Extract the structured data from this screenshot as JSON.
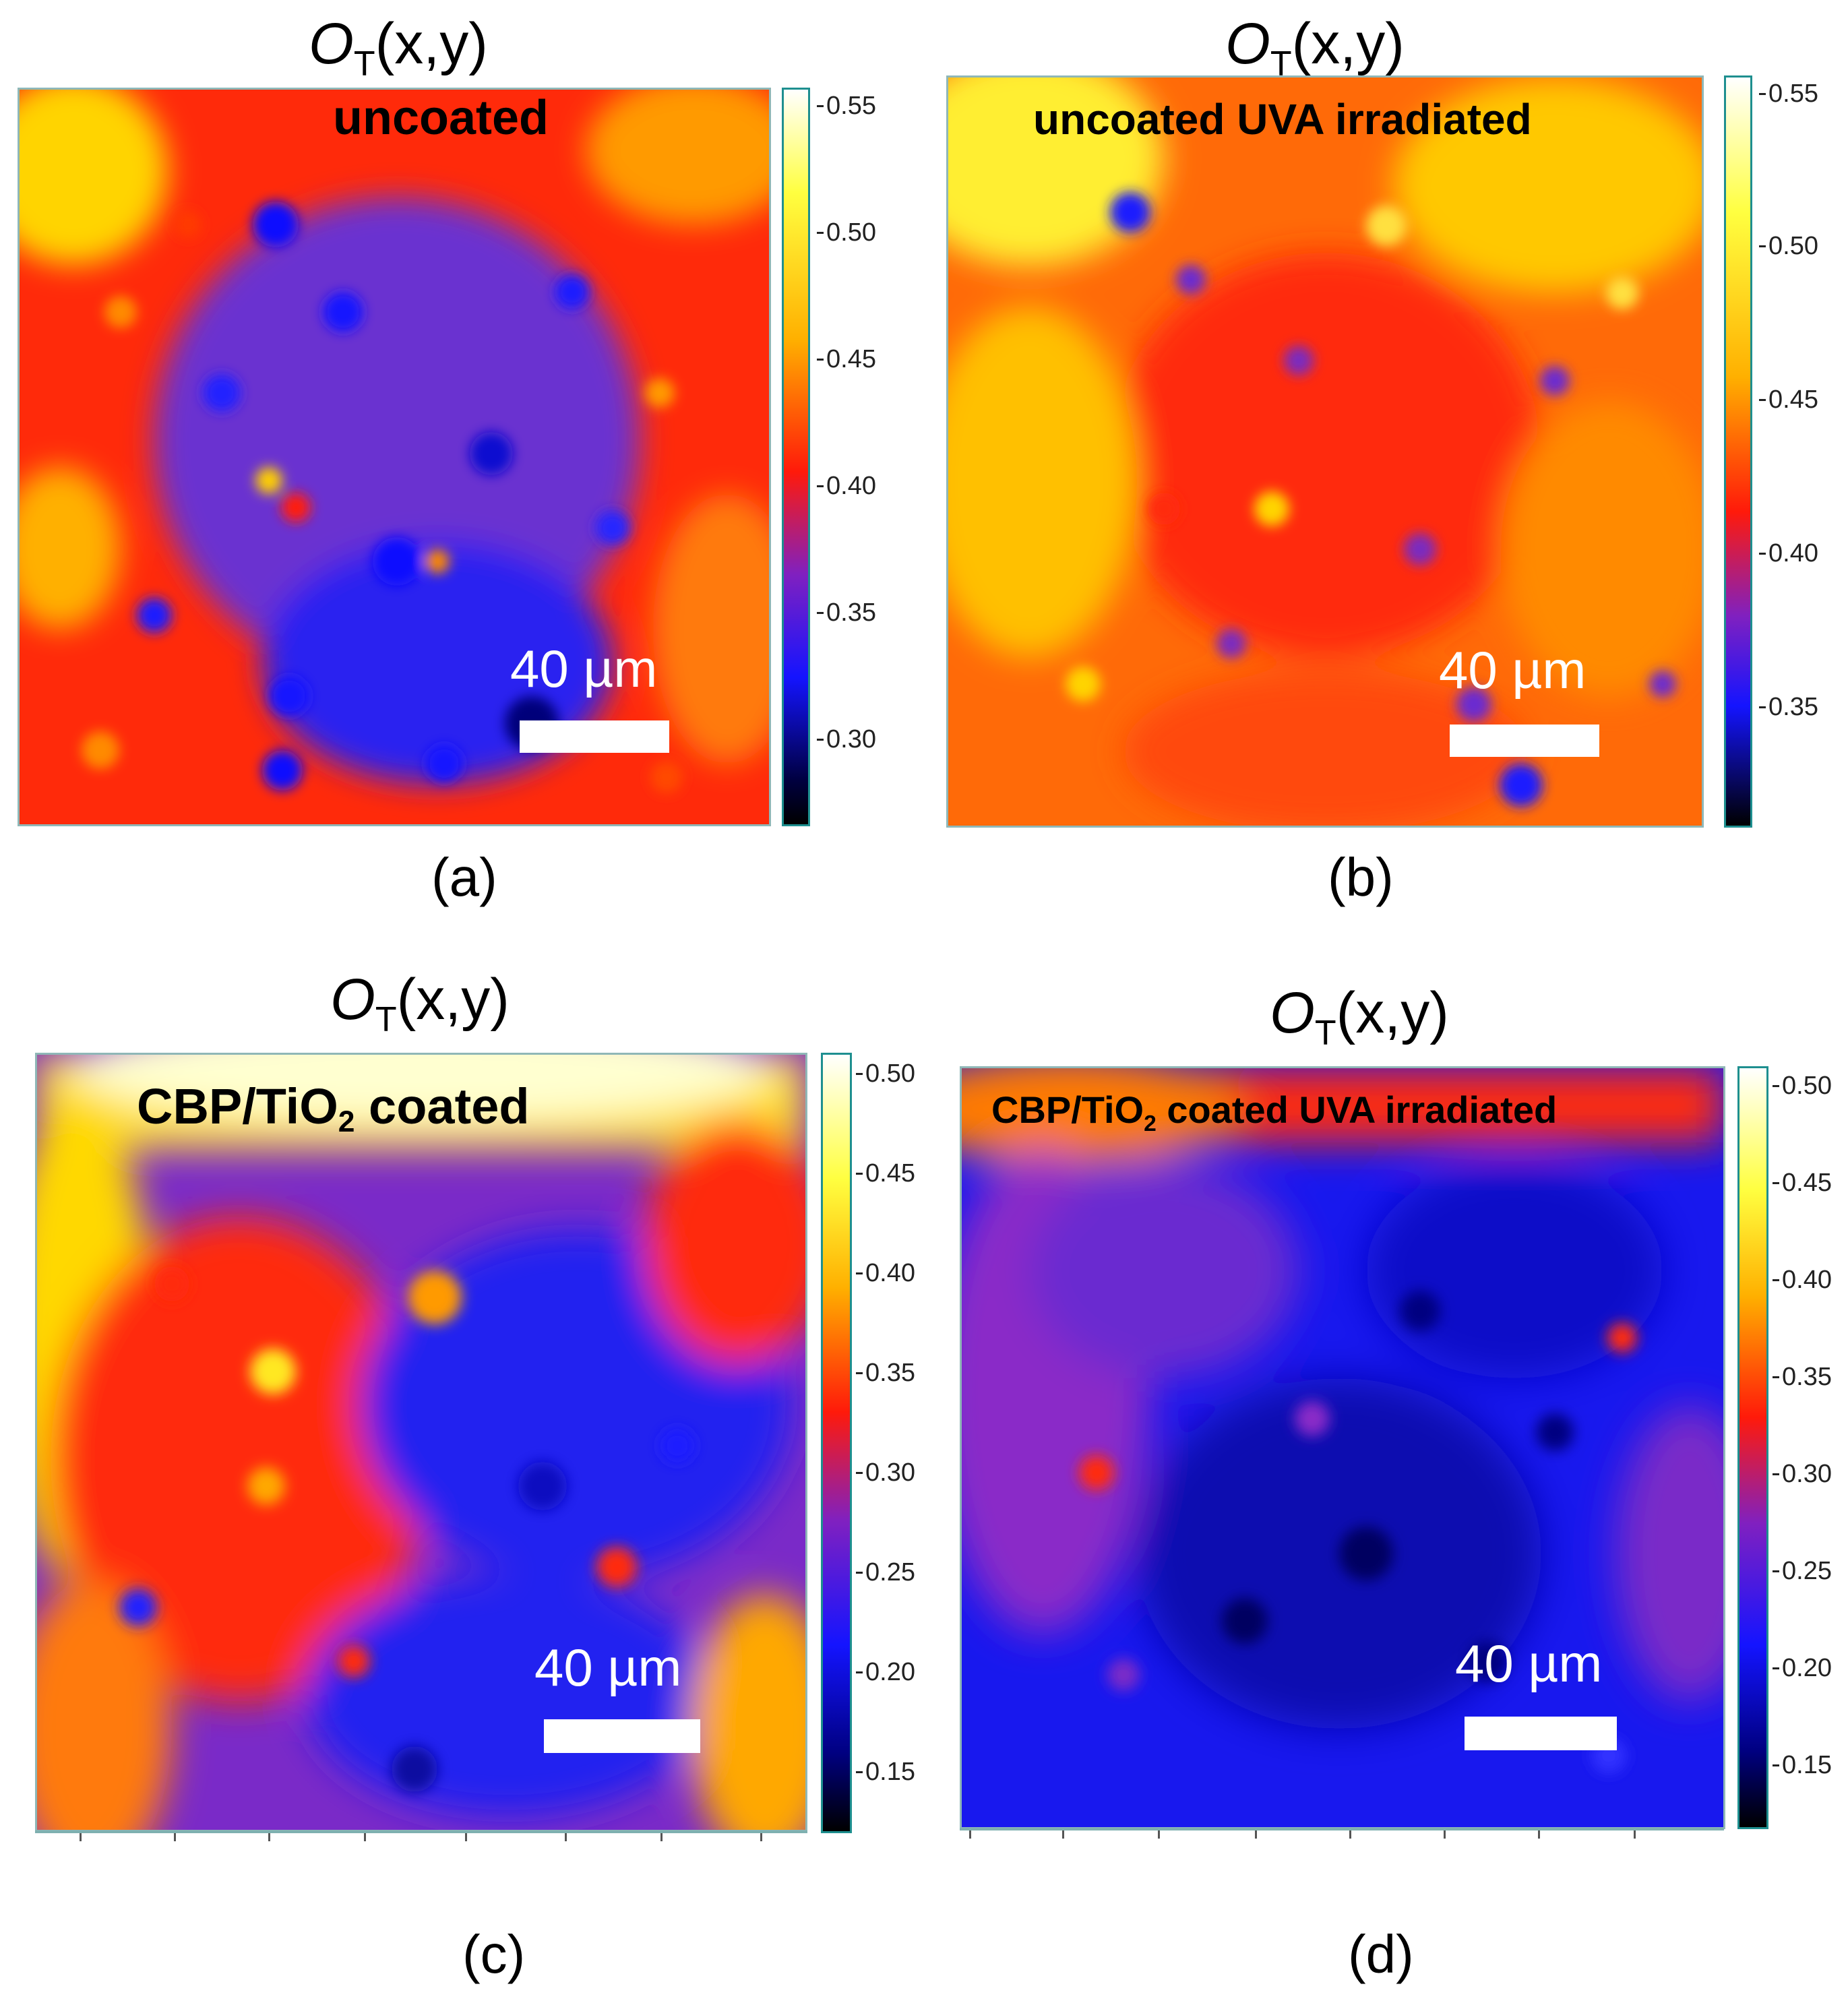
{
  "colors": {
    "black": "#000000",
    "blue": "#1414ff",
    "purple": "#7a2dbf",
    "red": "#ff1a0a",
    "orange": "#ff8c00",
    "yellow": "#ffff00",
    "white": "#ffffff"
  },
  "panels": [
    {
      "id": "a",
      "title_prefix": "O",
      "title_sub": "T",
      "title_suffix": "(x,y)",
      "caption": "uncoated",
      "scale_text": "40 µm",
      "label": "(a)",
      "colorbar_ticks": [
        "0.55",
        "0.50",
        "0.45",
        "0.40",
        "0.35",
        "0.30"
      ],
      "dominant": "red"
    },
    {
      "id": "b",
      "title_prefix": "O",
      "title_sub": "T",
      "title_suffix": "(x,y)",
      "caption": "uncoated UVA irradiated",
      "scale_text": "40 µm",
      "label": "(b)",
      "colorbar_ticks": [
        "0.55",
        "0.50",
        "0.45",
        "0.40",
        "0.35"
      ],
      "dominant": "orange"
    },
    {
      "id": "c",
      "title_prefix": "O",
      "title_sub": "T",
      "title_suffix": "(x,y)",
      "caption_pre": "CBP/TiO",
      "caption_sub": "2",
      "caption_post": " coated",
      "scale_text": "40 µm",
      "label": "(c)",
      "colorbar_ticks": [
        "0.50",
        "0.45",
        "0.40",
        "0.35",
        "0.30",
        "0.25",
        "0.20",
        "0.15"
      ],
      "dominant": "purple"
    },
    {
      "id": "d",
      "title_prefix": "O",
      "title_sub": "T",
      "title_suffix": "(x,y)",
      "caption_pre": "CBP/TiO",
      "caption_sub": "2",
      "caption_post": " coated UVA irradiated",
      "scale_text": "40 µm",
      "label": "(d)",
      "colorbar_ticks": [
        "0.50",
        "0.45",
        "0.40",
        "0.35",
        "0.30",
        "0.25",
        "0.20",
        "0.15"
      ],
      "dominant": "blue"
    }
  ]
}
